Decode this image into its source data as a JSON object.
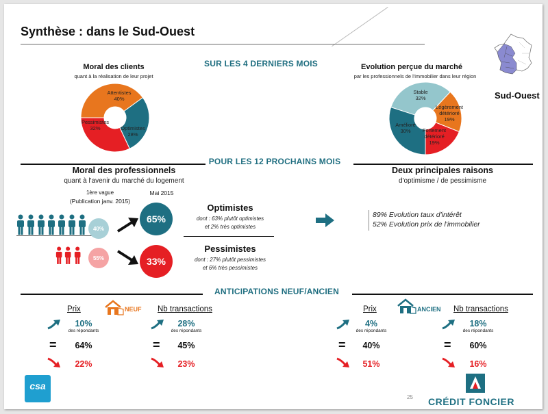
{
  "title": "Synthèse : dans le Sud-Ouest",
  "region_label": "Sud-Ouest",
  "page_number": "25",
  "logos": {
    "csa": "csa",
    "credit_foncier": "CRÉDIT FONCIER"
  },
  "sections": {
    "last4": "SUR LES 4 DERNIERS MOIS",
    "next12": "POUR LES 12 PROCHAINS MOIS",
    "anticipations": "ANTICIPATIONS NEUF/ANCIEN"
  },
  "moral_clients": {
    "title": "Moral des clients",
    "subtitle": "quant à la réalisation de leur projet",
    "chart_data": {
      "type": "pie",
      "slices": [
        {
          "label": "Attentistes",
          "value": 40,
          "value_label": "40%",
          "color": "#e8761e"
        },
        {
          "label": "Optimistes",
          "value": 28,
          "value_label": "28%",
          "color": "#1e6f82"
        },
        {
          "label": "Pessimistes",
          "value": 32,
          "value_label": "32%",
          "color": "#e51f24"
        }
      ]
    }
  },
  "evolution_marche": {
    "title": "Evolution perçue du marché",
    "subtitle": "par les professionnels de l'immobilier dans leur région",
    "chart_data": {
      "type": "pie",
      "slices": [
        {
          "label": "Stable",
          "value": 32,
          "value_label": "32%",
          "color": "#94c6cc"
        },
        {
          "label": "Légèrement détérioré",
          "value": 19,
          "value_label": "19%",
          "color": "#e8761e"
        },
        {
          "label": "Fortement détérioré",
          "value": 19,
          "value_label": "19%",
          "color": "#e51f24"
        },
        {
          "label": "Amélioré",
          "value": 30,
          "value_label": "30%",
          "color": "#1e6f82"
        }
      ]
    }
  },
  "moral_pros": {
    "title": "Moral des professionnels",
    "subtitle": "quant à l'avenir du marché du logement",
    "wave_label": "1ère vague",
    "wave_pub": "(Publication janv. 2015)",
    "mai_label": "Mai 2015",
    "opt_prev": "40%",
    "pess_prev": "55%",
    "opt_now": "65%",
    "pess_now": "33%",
    "opt_title": "Optimistes",
    "opt_detail1": "dont : 63% plutôt optimistes",
    "opt_detail2": "et 2% très optimistes",
    "pess_title": "Pessimistes",
    "pess_detail1": "dont : 27% plutôt pessimistes",
    "pess_detail2": "et 6% très pessimistes"
  },
  "raisons": {
    "title": "Deux principales raisons",
    "subtitle": "d'optimisme / de pessimisme",
    "r1": "89% Evolution taux d'intérêt",
    "r2": "52% Evolution prix de l'immobilier"
  },
  "anticipations": {
    "neuf_tag": "NEUF",
    "ancien_tag": "ANCIEN",
    "prix": "Prix",
    "nb": "Nb transactions",
    "repondants": "des répondants",
    "neuf_prix": {
      "up": "10%",
      "eq": "64%",
      "down": "22%"
    },
    "neuf_nb": {
      "up": "28%",
      "eq": "45%",
      "down": "23%"
    },
    "ancien_prix": {
      "up": "4%",
      "eq": "40%",
      "down": "51%"
    },
    "ancien_nb": {
      "up": "18%",
      "eq": "60%",
      "down": "16%"
    },
    "eq_symbol": "="
  }
}
